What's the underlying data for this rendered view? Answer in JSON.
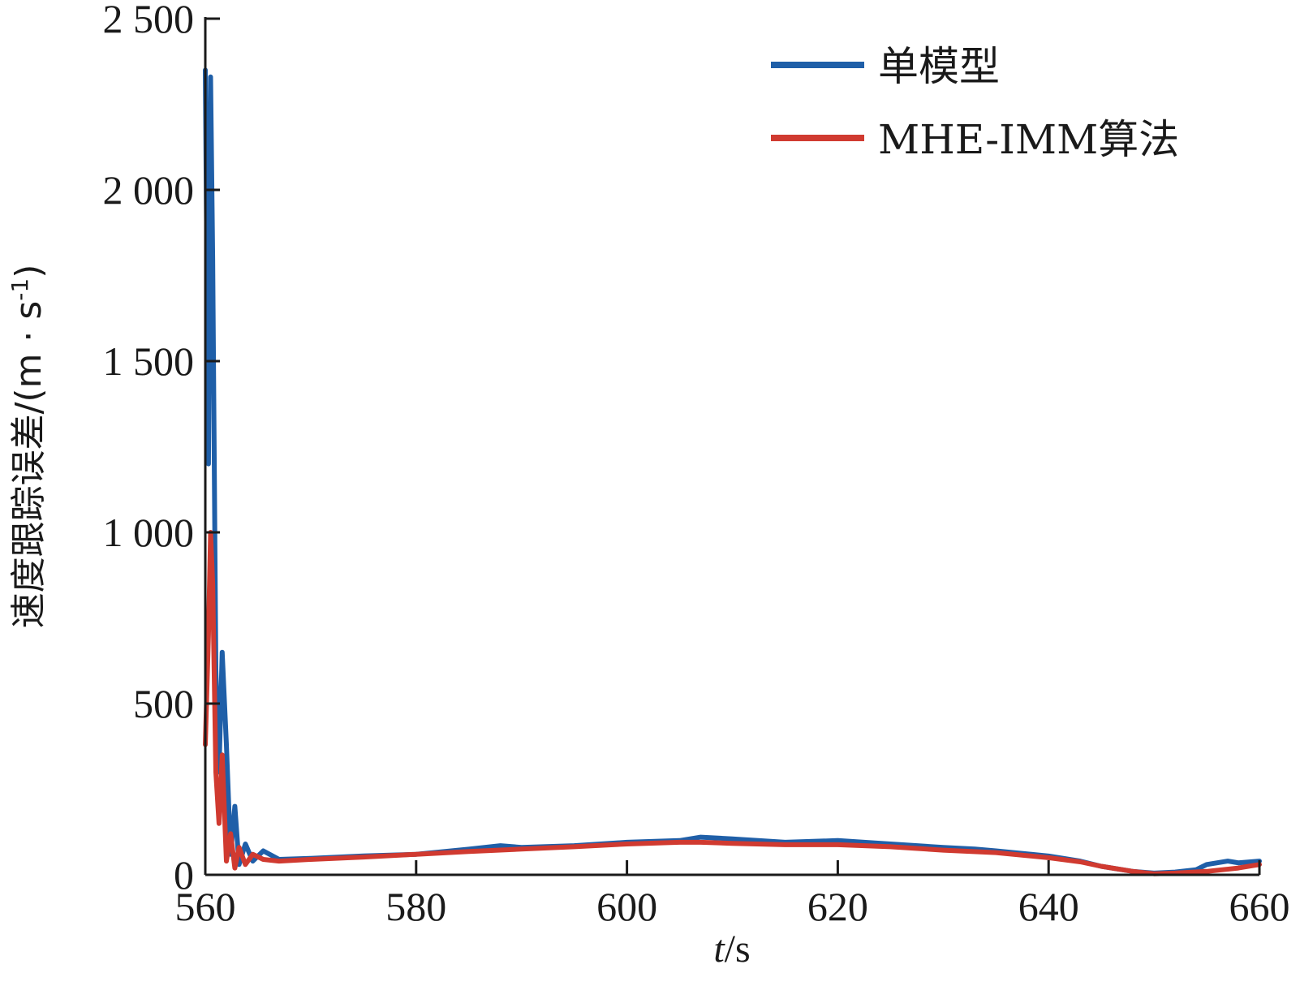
{
  "chart_data": {
    "type": "line",
    "xlabel_var": "t",
    "xlabel_unit": "/s",
    "ylabel": "速度跟踪误差/(m · s",
    "ylabel_sup": "-1",
    "ylabel_close": ")",
    "xlim": [
      560,
      660
    ],
    "ylim": [
      0,
      2500
    ],
    "xticks": [
      560,
      580,
      600,
      620,
      640,
      660
    ],
    "yticks": [
      0,
      500,
      1000,
      1500,
      2000,
      2500
    ],
    "xtick_labels": [
      "560",
      "580",
      "600",
      "620",
      "640",
      "660"
    ],
    "ytick_labels": [
      "0",
      "500",
      "1 000",
      "1 500",
      "2 000",
      "2 500"
    ],
    "legend_position": "top-right",
    "series": [
      {
        "name": "单模型",
        "color": "#1f5fa8",
        "x": [
          560.0,
          560.3,
          560.5,
          560.7,
          561.0,
          561.3,
          561.6,
          562.0,
          562.4,
          562.8,
          563.2,
          563.8,
          564.5,
          565.5,
          567,
          570,
          575,
          580,
          585,
          588,
          590,
          595,
          600,
          605,
          607,
          610,
          615,
          620,
          625,
          630,
          633,
          635,
          640,
          643,
          645,
          648,
          650,
          652,
          654,
          655,
          657,
          658,
          660
        ],
        "y": [
          2350,
          1200,
          2330,
          1800,
          600,
          300,
          650,
          380,
          60,
          200,
          30,
          90,
          40,
          70,
          45,
          48,
          55,
          60,
          75,
          85,
          80,
          85,
          95,
          100,
          110,
          105,
          95,
          100,
          90,
          80,
          75,
          70,
          55,
          40,
          25,
          10,
          5,
          8,
          15,
          30,
          40,
          35,
          40
        ]
      },
      {
        "name": "MHE-IMM算法",
        "color": "#d03a30",
        "x": [
          560.0,
          560.3,
          560.5,
          560.7,
          561.0,
          561.3,
          561.6,
          562.0,
          562.4,
          562.8,
          563.2,
          563.8,
          564.5,
          565.5,
          567,
          570,
          575,
          580,
          585,
          590,
          595,
          600,
          605,
          607,
          610,
          615,
          620,
          625,
          630,
          635,
          640,
          643,
          645,
          648,
          650,
          652,
          655,
          658,
          660
        ],
        "y": [
          380,
          700,
          1000,
          850,
          300,
          150,
          350,
          40,
          120,
          20,
          80,
          30,
          60,
          45,
          40,
          45,
          52,
          60,
          68,
          75,
          82,
          90,
          95,
          95,
          92,
          88,
          88,
          82,
          72,
          65,
          50,
          38,
          25,
          10,
          3,
          5,
          10,
          20,
          30
        ]
      }
    ]
  }
}
